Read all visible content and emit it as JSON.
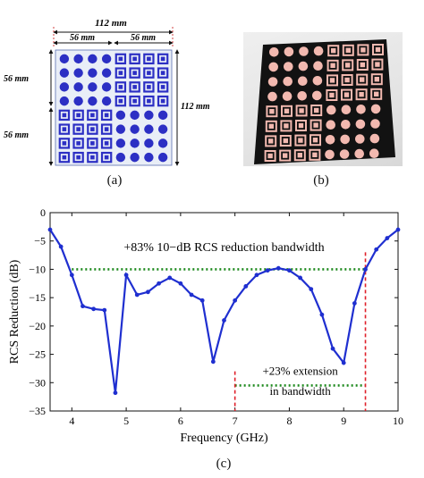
{
  "figure_a": {
    "caption": "(a)",
    "dim_top_total": "112 mm",
    "dim_top_left": "56 mm",
    "dim_top_right": "56 mm",
    "dim_left_top": "56 mm",
    "dim_left_bottom": "56 mm",
    "dim_right": "112 mm",
    "quadrants": [
      "dots",
      "squares",
      "squares",
      "dots"
    ],
    "colors": {
      "unit": "#2c2fc4",
      "background": "#e9eef7"
    }
  },
  "figure_b": {
    "caption": "(b)",
    "quadrants": [
      "dots",
      "squares",
      "squares",
      "dots"
    ],
    "colors": {
      "board": "#111111",
      "unit": "#f2b9b0"
    }
  },
  "figure_c": {
    "caption": "(c)",
    "annotation_bandwidth": "+83% 10−dB RCS reduction bandwidth",
    "annotation_extension_line1": "+23% extension",
    "annotation_extension_line2": "in bandwidth"
  },
  "chart_data": {
    "type": "line",
    "xlabel": "Frequency (GHz)",
    "ylabel": "RCS Reduction (dB)",
    "xlim": [
      3.6,
      10
    ],
    "ylim": [
      -35,
      0
    ],
    "xticks": [
      4,
      5,
      6,
      7,
      8,
      9,
      10
    ],
    "yticks": [
      0,
      -5,
      -10,
      -15,
      -20,
      -25,
      -30,
      -35
    ],
    "grid": false,
    "series": [
      {
        "color": "#1f2fd0",
        "x": [
          3.6,
          3.8,
          4.0,
          4.2,
          4.4,
          4.6,
          4.8,
          5.0,
          5.2,
          5.4,
          5.6,
          5.8,
          6.0,
          6.2,
          6.4,
          6.6,
          6.8,
          7.0,
          7.2,
          7.4,
          7.6,
          7.8,
          8.0,
          8.2,
          8.4,
          8.6,
          8.8,
          9.0,
          9.2,
          9.4,
          9.6,
          9.8,
          10.0
        ],
        "y": [
          -3,
          -6,
          -11,
          -16.5,
          -17,
          -17.2,
          -31.8,
          -11,
          -14.5,
          -14,
          -12.5,
          -11.5,
          -12.5,
          -14.5,
          -15.5,
          -26.3,
          -19,
          -15.5,
          -13,
          -11,
          -10.2,
          -9.8,
          -10.2,
          -11.5,
          -13.5,
          -18,
          -24,
          -26.5,
          -16,
          -10,
          -6.5,
          -4.5,
          -3
        ]
      }
    ],
    "reference_lines": [
      {
        "kind": "horizontal",
        "y": -10,
        "x_from": 4.0,
        "x_to": 9.4,
        "style": "dotted",
        "color": "#1e8a1e"
      },
      {
        "kind": "horizontal",
        "y": -30.5,
        "x_from": 7.0,
        "x_to": 9.4,
        "style": "dotted",
        "color": "#1e8a1e"
      },
      {
        "kind": "vertical",
        "x": 7.0,
        "y_from": -28,
        "y_to": -35,
        "style": "dashed",
        "color": "#e0202a"
      },
      {
        "kind": "vertical",
        "x": 9.4,
        "y_from": -7,
        "y_to": -35,
        "style": "dashed",
        "color": "#e0202a"
      }
    ]
  }
}
